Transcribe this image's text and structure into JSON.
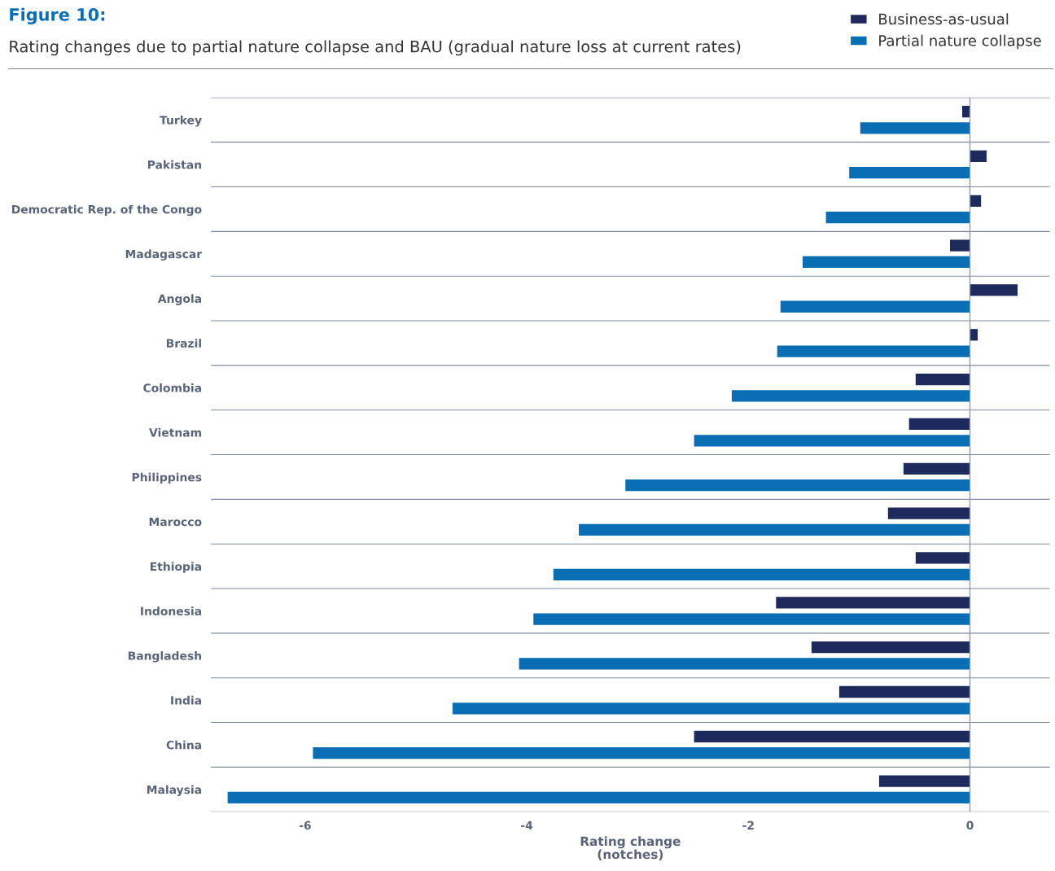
{
  "chart_data": {
    "type": "bar",
    "orientation": "horizontal",
    "title": "Figure 10:",
    "subtitle": "Rating changes due to partial nature collapse and BAU (gradual nature loss at current rates)",
    "xlabel": "Rating change\n(notches)",
    "categories": [
      "Turkey",
      "Pakistan",
      "Democratic Rep. of the Congo",
      "Madagascar",
      "Angola",
      "Brazil",
      "Colombia",
      "Vietnam",
      "Philippines",
      "Marocco",
      "Ethiopia",
      "Indonesia",
      "Bangladesh",
      "India",
      "China",
      "Malaysia"
    ],
    "series": [
      {
        "name": "Business-as-usual",
        "color": "#1f2a5c",
        "values": [
          -0.07,
          0.15,
          0.1,
          -0.18,
          0.43,
          0.07,
          -0.49,
          -0.55,
          -0.6,
          -0.74,
          -0.49,
          -1.75,
          -1.43,
          -1.18,
          -2.49,
          -0.82
        ]
      },
      {
        "name": "Partial nature collapse",
        "color": "#0a6eb4",
        "values": [
          -0.99,
          -1.09,
          -1.3,
          -1.51,
          -1.71,
          -1.74,
          -2.15,
          -2.49,
          -3.11,
          -3.53,
          -3.76,
          -3.94,
          -4.07,
          -4.67,
          -5.93,
          -6.7
        ]
      }
    ],
    "xlim": [
      -6.85,
      0.72
    ],
    "xticks": [
      -6,
      -4,
      -2,
      0
    ],
    "grid": "y",
    "legend": "top right",
    "ref_lines": [
      {
        "axis": "x",
        "value": 0,
        "color": "#8a9ab0"
      }
    ]
  }
}
